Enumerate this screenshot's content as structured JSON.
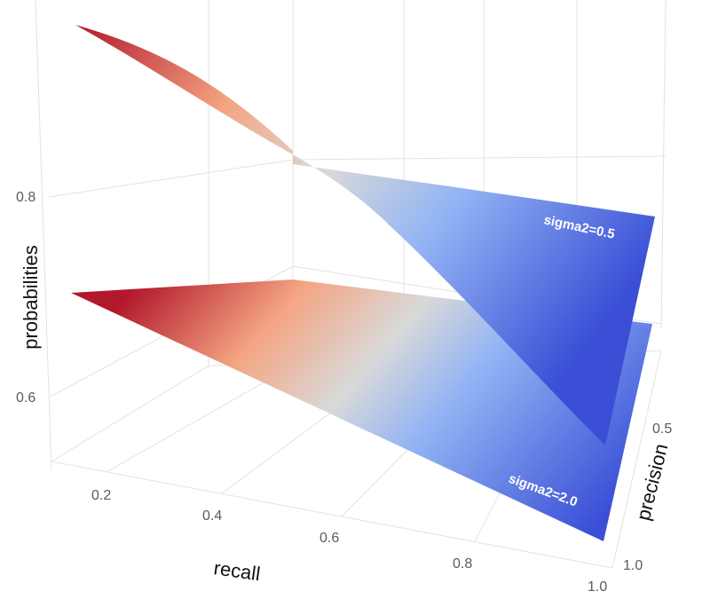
{
  "chart_data": {
    "type": "surface3d",
    "axes": {
      "x": {
        "title": "recall",
        "ticks": [
          "0.2",
          "0.4",
          "0.6",
          "0.8",
          "1.0"
        ],
        "range": [
          0.1,
          1.0
        ]
      },
      "y": {
        "title": "precision",
        "ticks": [
          "0.5",
          "1.0"
        ],
        "range": [
          0.0,
          1.0
        ]
      },
      "z": {
        "title": "probabilities",
        "ticks": [
          "0.6",
          "0.8"
        ],
        "range": [
          0.5,
          0.95
        ]
      }
    },
    "colorscale": [
      "#b2182b",
      "#f4a582",
      "#d9d9d9",
      "#92b4f4",
      "#3a4fd6"
    ],
    "series": [
      {
        "name": "sigma2=0.5",
        "corners": {
          "recall_0.1_precision_0": 0.93,
          "recall_1.0_precision_0": 0.8,
          "recall_1.0_precision_1": 0.55,
          "recall_0.1_precision_1": 0.93
        }
      },
      {
        "name": "sigma2=2.0",
        "corners": {
          "recall_0.1_precision_0": 0.7,
          "recall_1.0_precision_0": 0.68,
          "recall_1.0_precision_1": 0.5,
          "recall_0.1_precision_1": 0.7
        }
      }
    ],
    "grid": true,
    "legend": "none"
  }
}
